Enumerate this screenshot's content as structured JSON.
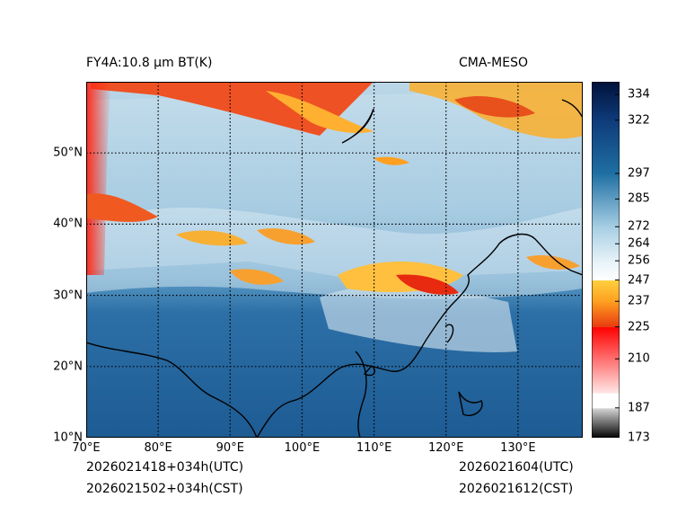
{
  "header": {
    "product_title": "FY4A:10.8 µm BT(K)",
    "model_name": "CMA-MESO"
  },
  "footer": {
    "init_utc": "2026021418+034h(UTC)",
    "init_cst": "2026021502+034h(CST)",
    "valid_utc": "2026021604(UTC)",
    "valid_cst": "2026021612(CST)"
  },
  "map": {
    "lon_range": [
      70,
      139
    ],
    "lat_range": [
      10,
      60
    ],
    "lon_ticks": [
      70,
      80,
      90,
      100,
      110,
      120,
      130
    ],
    "lon_labels": [
      "70°E",
      "80°E",
      "90°E",
      "100°E",
      "110°E",
      "120°E",
      "130°E"
    ],
    "lat_ticks": [
      10,
      20,
      30,
      40,
      50
    ],
    "lat_labels": [
      "10°N",
      "20°N",
      "30°N",
      "40°N",
      "50°N"
    ],
    "gridline_color": "#000000"
  },
  "colorbar": {
    "range": [
      173,
      340
    ],
    "ticks": [
      173,
      187,
      210,
      225,
      237,
      247,
      256,
      264,
      272,
      285,
      297,
      322,
      334
    ],
    "tick_labels": [
      "173",
      "187",
      "210",
      "225",
      "237",
      "247",
      "256",
      "264",
      "272",
      "285",
      "297",
      "322",
      "334"
    ],
    "segments": [
      {
        "from": 173,
        "to": 187,
        "c1": "#000000",
        "c2": "#d9d9d9"
      },
      {
        "from": 187,
        "to": 194,
        "c1": "#ffffff",
        "c2": "#ffffff"
      },
      {
        "from": 194,
        "to": 225,
        "c1": "#ffe6e6",
        "c2": "#ff0000"
      },
      {
        "from": 225,
        "to": 237,
        "c1": "#e83a10",
        "c2": "#ffa020"
      },
      {
        "from": 237,
        "to": 247,
        "c1": "#ffa020",
        "c2": "#ffd040"
      },
      {
        "from": 247,
        "to": 256,
        "c1": "#ffffff",
        "c2": "#e6f2f8"
      },
      {
        "from": 256,
        "to": 272,
        "c1": "#e6f2f8",
        "c2": "#a6cee3"
      },
      {
        "from": 272,
        "to": 297,
        "c1": "#a6cee3",
        "c2": "#1f6fa3"
      },
      {
        "from": 297,
        "to": 322,
        "c1": "#1f6fa3",
        "c2": "#0f3b7a"
      },
      {
        "from": 322,
        "to": 340,
        "c1": "#0f3b7a",
        "c2": "#00123a"
      }
    ]
  }
}
